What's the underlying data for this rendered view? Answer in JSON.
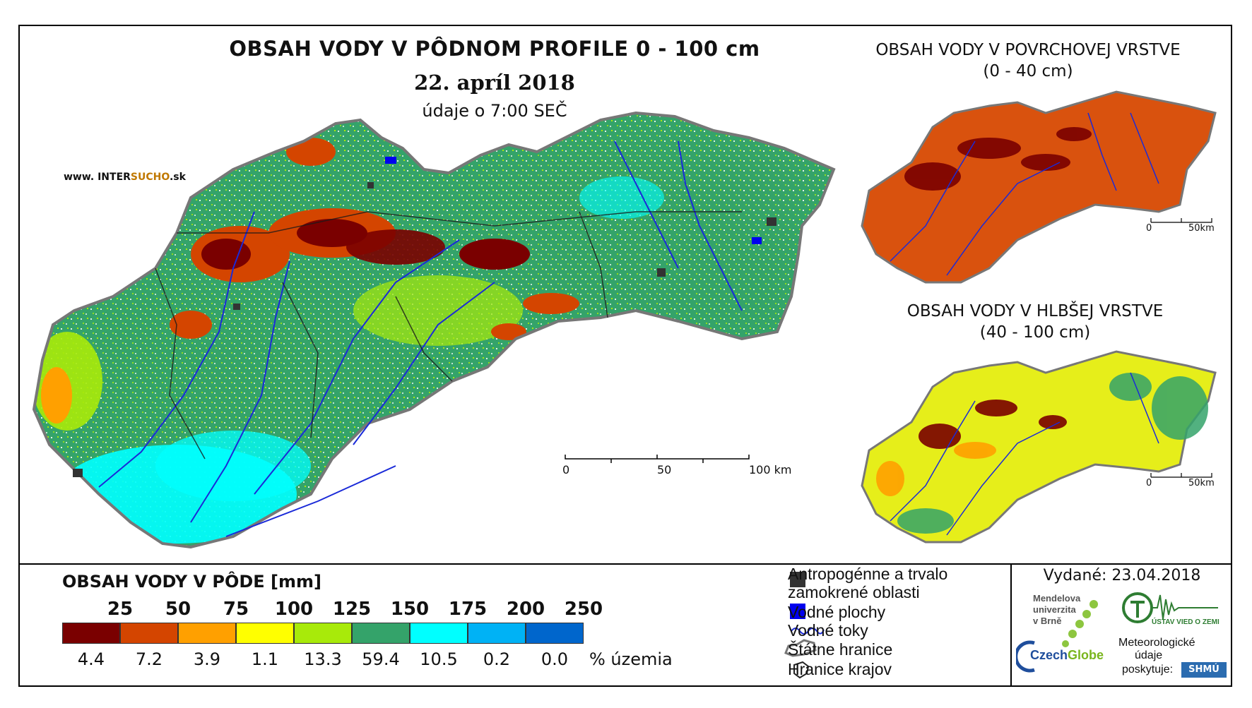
{
  "header": {
    "title": "OBSAH VODY V PÔDNOM PROFILE 0 - 100 cm",
    "date": "22. apríl 2018",
    "time": "údaje o 7:00 SEČ",
    "website_prefix": "www. INTER",
    "website_accent": "SUCHO",
    "website_suffix": ".sk"
  },
  "insets": {
    "surface": {
      "title_line1": "OBSAH VODY V POVRCHOVEJ VRSTVE",
      "title_line2": "(0 - 40 cm)",
      "scale_zero": "0",
      "scale_end": "50km",
      "dominant_color": "#d9520e"
    },
    "deep": {
      "title_line1": "OBSAH VODY V HLBŠEJ VRSTVE",
      "title_line2": "(40 - 100 cm)",
      "scale_zero": "0",
      "scale_end": "50km",
      "dominant_color": "#e6ee1a"
    }
  },
  "main_scale": {
    "zero": "0",
    "mid": "50",
    "end": "100 km"
  },
  "legend": {
    "title": "OBSAH VODY V PÔDE [mm]",
    "thresholds": [
      "25",
      "50",
      "75",
      "100",
      "125",
      "150",
      "175",
      "200",
      "250"
    ],
    "classes": [
      {
        "color": "#7a0000",
        "percent": "4.4"
      },
      {
        "color": "#d44500",
        "percent": "7.2"
      },
      {
        "color": "#ffa000",
        "percent": "3.9"
      },
      {
        "color": "#ffff00",
        "percent": "1.1"
      },
      {
        "color": "#a8ea0a",
        "percent": "13.3"
      },
      {
        "color": "#34a36a",
        "percent": "59.4"
      },
      {
        "color": "#00ffff",
        "percent": "10.5"
      },
      {
        "color": "#00b2f5",
        "percent": "0.2"
      },
      {
        "color": "#0066cc",
        "percent": "0.0"
      }
    ],
    "percent_unit": "% územia"
  },
  "key": {
    "anthropogenic_line1": "Antropogénne a trvalo",
    "anthropogenic_line2": "zamokrené oblasti",
    "water_bodies": "Vodné plochy",
    "rivers": "Vodné toky",
    "state_border": "Štátne hranice",
    "regions": "Hranice krajov"
  },
  "issued": "Vydané: 23.04.2018",
  "logos": {
    "mendel_line1": "Mendelova",
    "mendel_line2": "univerzita",
    "mendel_line3": "v Brně",
    "czechglobe_a": "Czech",
    "czechglobe_b": "Globe",
    "meteo_line1": "Meteorologické",
    "meteo_line2": "údaje",
    "meteo_line3": "poskytuje:",
    "uvgz": "ÚSTAV VIED O ZEMI",
    "shmu": "SHMÚ"
  }
}
